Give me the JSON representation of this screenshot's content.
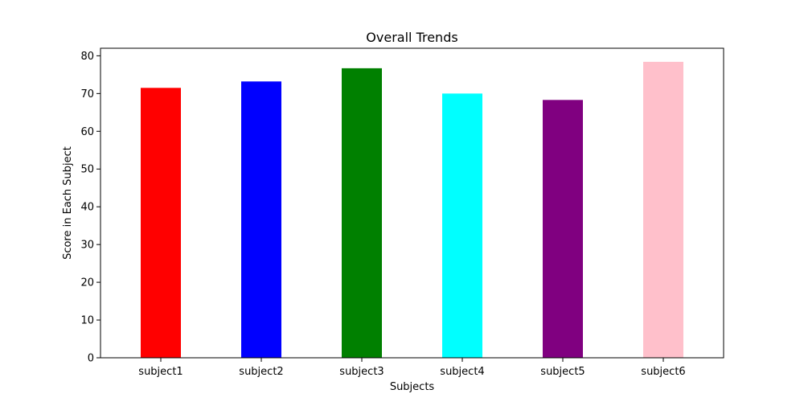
{
  "chart_data": {
    "type": "bar",
    "title": "Overall Trends",
    "xlabel": "Subjects",
    "ylabel": "Score in Each Subject",
    "categories": [
      "subject1",
      "subject2",
      "subject3",
      "subject4",
      "subject5",
      "subject6"
    ],
    "values": [
      71.5,
      73.2,
      76.7,
      70.0,
      68.3,
      78.4
    ],
    "colors": [
      "#ff0000",
      "#0000ff",
      "#008000",
      "#00ffff",
      "#800080",
      "#ffc0cb"
    ],
    "ylim": [
      0,
      82
    ],
    "yticks": [
      0,
      10,
      20,
      30,
      40,
      50,
      60,
      70,
      80
    ],
    "grid": false,
    "legend": "none"
  }
}
